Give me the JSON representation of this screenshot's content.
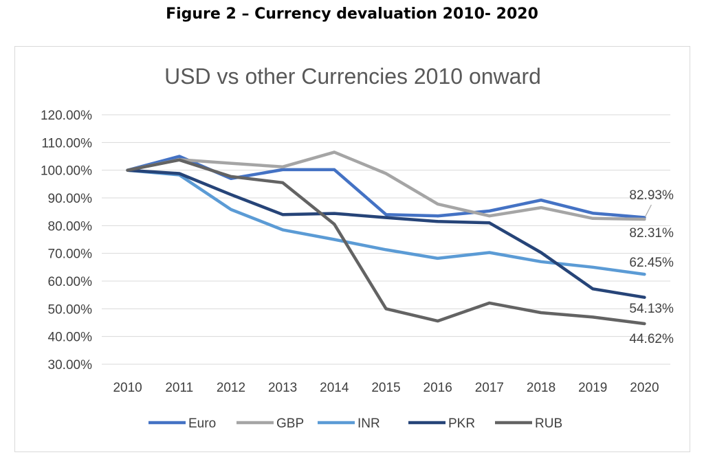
{
  "figure_caption": "Figure 2 – Currency devaluation 2010- 2020",
  "chart_data": {
    "type": "line",
    "title": "USD vs other Currencies 2010 onward",
    "xlabel": "",
    "ylabel": "",
    "categories": [
      "2010",
      "2011",
      "2012",
      "2013",
      "2014",
      "2015",
      "2016",
      "2017",
      "2018",
      "2019",
      "2020"
    ],
    "ylim": [
      30,
      120
    ],
    "yticks": [
      30,
      40,
      50,
      60,
      70,
      80,
      90,
      100,
      110,
      120
    ],
    "ytick_labels": [
      "30.00%",
      "40.00%",
      "50.00%",
      "60.00%",
      "70.00%",
      "80.00%",
      "90.00%",
      "100.00%",
      "110.00%",
      "120.00%"
    ],
    "grid": true,
    "legend_position": "bottom",
    "series": [
      {
        "name": "Euro",
        "color": "#4472c4",
        "values": [
          100,
          105,
          97,
          100.2,
          100.2,
          84,
          83.5,
          85.3,
          89.2,
          84.5,
          82.93
        ],
        "end_label": "82.93%"
      },
      {
        "name": "GBP",
        "color": "#a5a5a5",
        "values": [
          100,
          103.8,
          102.5,
          101.2,
          106.5,
          98.8,
          87.8,
          83.5,
          86.5,
          82.6,
          82.31
        ],
        "end_label": "82.31%"
      },
      {
        "name": "INR",
        "color": "#5b9bd5",
        "values": [
          100,
          98.3,
          85.8,
          78.5,
          75,
          71.3,
          68.2,
          70.3,
          67,
          65,
          62.45
        ],
        "end_label": "62.45%"
      },
      {
        "name": "PKR",
        "color": "#264478",
        "values": [
          100,
          98.8,
          91.2,
          84,
          84.4,
          82.9,
          81.5,
          81,
          70.3,
          57.2,
          54.13
        ],
        "end_label": "54.13%"
      },
      {
        "name": "RUB",
        "color": "#636363",
        "values": [
          100,
          103.7,
          97.7,
          95.5,
          80.5,
          50,
          45.6,
          52.1,
          48.6,
          47,
          44.62
        ],
        "end_label": "44.62%"
      }
    ]
  }
}
